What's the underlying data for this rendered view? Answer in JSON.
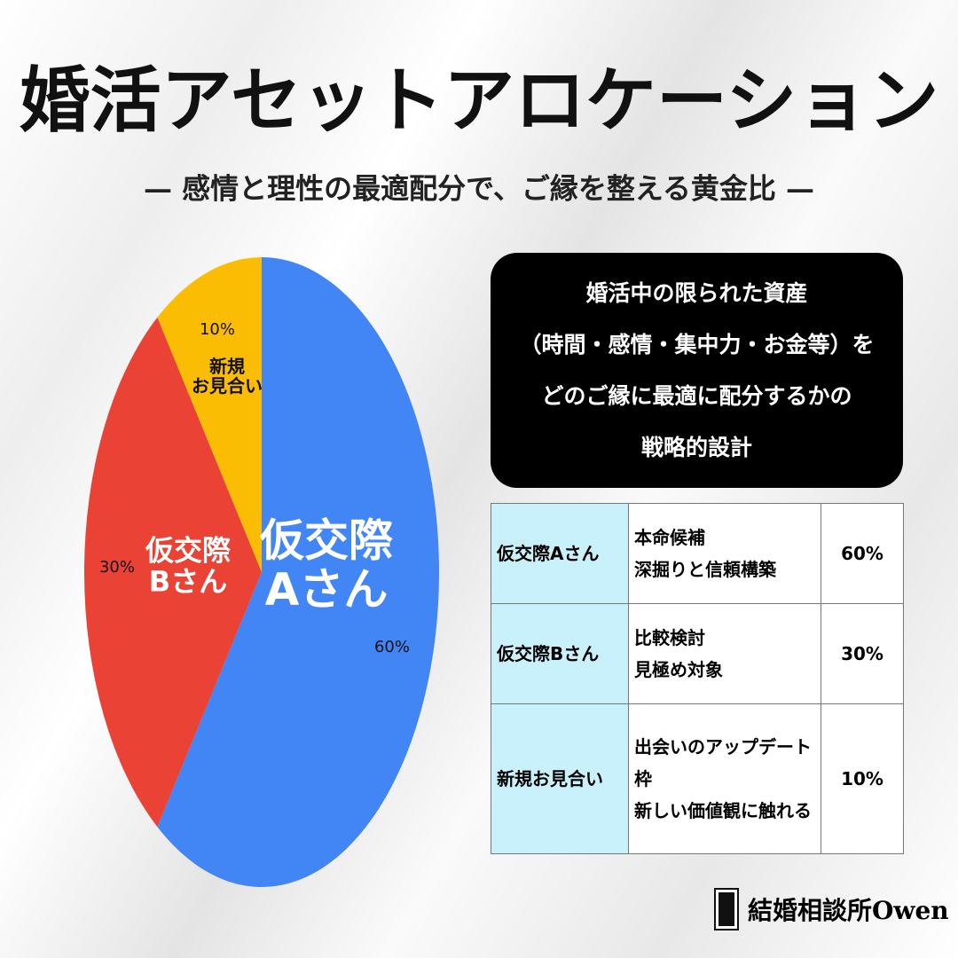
{
  "title": "婚活アセットアロケーション",
  "subtitle": "— 感情と理性の最適配分で、ご縁を整える黄金比 —",
  "chart_data": {
    "type": "pie",
    "categories": [
      "仮交際\nAさん",
      "仮交際\nBさん",
      "新規\nお見合い"
    ],
    "values": [
      60,
      30,
      10
    ],
    "value_labels": [
      "60%",
      "30%",
      "10%"
    ],
    "colors": [
      "#4285f4",
      "#ea4335",
      "#fbbc04"
    ]
  },
  "info_box": {
    "lines": [
      "婚活中の限られた資産",
      "（時間・感情・集中力・お金等）を",
      "どのご縁に最適に配分するかの",
      "戦略的設計"
    ]
  },
  "table": {
    "rows": [
      [
        "仮交際Aさん",
        "本命候補\n深掘りと信頼構築",
        "60%"
      ],
      [
        "仮交際Bさん",
        "比較検討\n見極め対象",
        "30%"
      ],
      [
        "新規お見合い",
        "出会いのアップデート枠\n新しい価値観に触れる",
        "10%"
      ]
    ]
  },
  "brand": "結婚相談所Owen"
}
